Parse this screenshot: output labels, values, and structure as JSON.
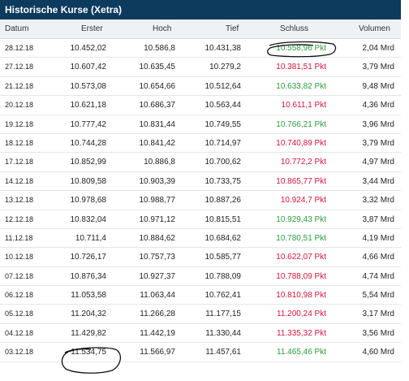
{
  "title": "Historische Kurse (Xetra)",
  "columns": {
    "date": "Datum",
    "open": "Erster",
    "high": "Hoch",
    "low": "Tief",
    "close": "Schluss",
    "volume": "Volumen"
  },
  "colors": {
    "up": "#2a9d3a",
    "down": "#d4153b",
    "header": "#0d3b5e"
  },
  "rows": [
    {
      "date": "28.12.18",
      "open": "10.452,02",
      "high": "10.586,8",
      "low": "10.431,38",
      "close": "10.558,96 Pkt",
      "dir": "up",
      "volume": "2,04 Mrd"
    },
    {
      "date": "27.12.18",
      "open": "10.607,42",
      "high": "10.635,45",
      "low": "10.279,2",
      "close": "10.381,51 Pkt",
      "dir": "down",
      "volume": "3,79 Mrd"
    },
    {
      "date": "21.12.18",
      "open": "10.573,08",
      "high": "10.654,66",
      "low": "10.512,64",
      "close": "10.633,82 Pkt",
      "dir": "up",
      "volume": "9,48 Mrd"
    },
    {
      "date": "20.12.18",
      "open": "10.621,18",
      "high": "10.686,37",
      "low": "10.563,44",
      "close": "10.611,1 Pkt",
      "dir": "down",
      "volume": "4,36 Mrd"
    },
    {
      "date": "19.12.18",
      "open": "10.777,42",
      "high": "10.831,44",
      "low": "10.749,55",
      "close": "10.766,21 Pkt",
      "dir": "up",
      "volume": "3,96 Mrd"
    },
    {
      "date": "18.12.18",
      "open": "10.744,28",
      "high": "10.841,42",
      "low": "10.714,97",
      "close": "10.740,89 Pkt",
      "dir": "down",
      "volume": "3,79 Mrd"
    },
    {
      "date": "17.12.18",
      "open": "10.852,99",
      "high": "10.886,8",
      "low": "10.700,62",
      "close": "10.772,2 Pkt",
      "dir": "down",
      "volume": "4,97 Mrd"
    },
    {
      "date": "14.12.18",
      "open": "10.809,58",
      "high": "10.903,39",
      "low": "10.733,75",
      "close": "10.865,77 Pkt",
      "dir": "down",
      "volume": "3,44 Mrd"
    },
    {
      "date": "13.12.18",
      "open": "10.978,68",
      "high": "10.988,77",
      "low": "10.887,26",
      "close": "10.924,7 Pkt",
      "dir": "down",
      "volume": "3,32 Mrd"
    },
    {
      "date": "12.12.18",
      "open": "10.832,04",
      "high": "10.971,12",
      "low": "10.815,51",
      "close": "10.929,43 Pkt",
      "dir": "up",
      "volume": "3,87 Mrd"
    },
    {
      "date": "11.12.18",
      "open": "10.711,4",
      "high": "10.884,62",
      "low": "10.684,62",
      "close": "10.780,51 Pkt",
      "dir": "up",
      "volume": "4,19 Mrd"
    },
    {
      "date": "10.12.18",
      "open": "10.726,17",
      "high": "10.757,73",
      "low": "10.585,77",
      "close": "10.622,07 Pkt",
      "dir": "down",
      "volume": "4,66 Mrd"
    },
    {
      "date": "07.12.18",
      "open": "10.876,34",
      "high": "10.927,37",
      "low": "10.788,09",
      "close": "10.788,09 Pkt",
      "dir": "down",
      "volume": "4,74 Mrd"
    },
    {
      "date": "06.12.18",
      "open": "11.053,58",
      "high": "11.063,44",
      "low": "10.762,41",
      "close": "10.810,98 Pkt",
      "dir": "down",
      "volume": "5,54 Mrd"
    },
    {
      "date": "05.12.18",
      "open": "11.204,32",
      "high": "11.266,28",
      "low": "11.177,15",
      "close": "11.200,24 Pkt",
      "dir": "down",
      "volume": "3,17 Mrd"
    },
    {
      "date": "04.12.18",
      "open": "11.429,82",
      "high": "11.442,19",
      "low": "11.330,44",
      "close": "11.335,32 Pkt",
      "dir": "down",
      "volume": "3,56 Mrd"
    },
    {
      "date": "03.12.18",
      "open": "11.534,75",
      "high": "11.566,97",
      "low": "11.457,61",
      "close": "11.465,46 Pkt",
      "dir": "up",
      "volume": "4,60 Mrd"
    }
  ]
}
